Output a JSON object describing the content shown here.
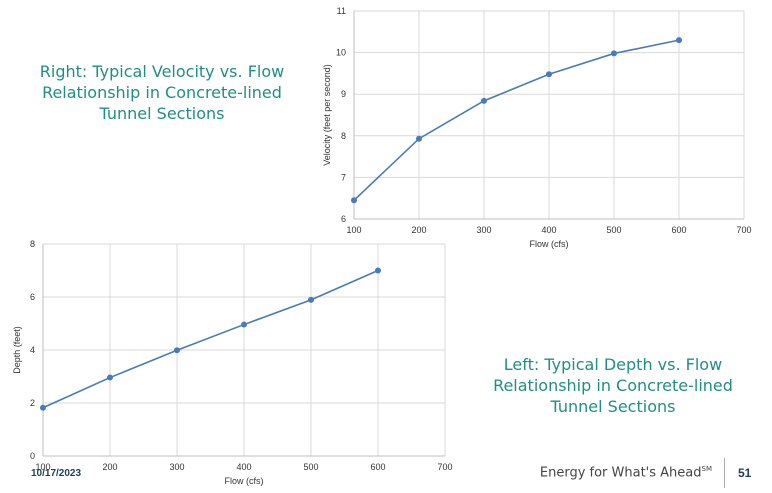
{
  "captions": {
    "right": [
      "Right: Typical Velocity vs. Flow",
      "Relationship in Concrete-lined",
      "Tunnel Sections"
    ],
    "left": [
      "Left: Typical Depth vs. Flow",
      "Relationship in Concrete-lined",
      "Tunnel Sections"
    ]
  },
  "footer": {
    "date": "10/17/2023",
    "tagline": "Energy for What's Ahead",
    "tagline_mark": "SM",
    "page_number": "51"
  },
  "colors": {
    "series": "#4a7ab8",
    "grid": "#d9d9d9",
    "axis": "#bfbfbf",
    "caption": "#1f8f83"
  },
  "chart_data": [
    {
      "id": "velocity",
      "type": "line",
      "title": "",
      "xlabel": "Flow (cfs)",
      "ylabel": "Velocity (feet per second)",
      "xlim": [
        100,
        700
      ],
      "ylim": [
        6,
        11
      ],
      "xticks": [
        100,
        200,
        300,
        400,
        500,
        600,
        700
      ],
      "yticks": [
        6,
        7,
        8,
        9,
        10,
        11
      ],
      "grid": true,
      "legend": "none",
      "series": [
        {
          "x": [
            100,
            200,
            300,
            400,
            500,
            600
          ],
          "y": [
            6.45,
            7.93,
            8.84,
            9.48,
            9.98,
            10.3
          ]
        }
      ]
    },
    {
      "id": "depth",
      "type": "line",
      "title": "",
      "xlabel": "Flow (cfs)",
      "ylabel": "Depth (feet)",
      "xlim": [
        100,
        700
      ],
      "ylim": [
        0,
        8
      ],
      "xticks": [
        100,
        200,
        300,
        400,
        500,
        600,
        700
      ],
      "yticks": [
        0,
        2,
        4,
        6,
        8
      ],
      "grid": true,
      "legend": "none",
      "series": [
        {
          "x": [
            100,
            200,
            300,
            400,
            500,
            600
          ],
          "y": [
            1.82,
            2.96,
            3.99,
            4.96,
            5.89,
            7.0
          ]
        }
      ]
    }
  ]
}
